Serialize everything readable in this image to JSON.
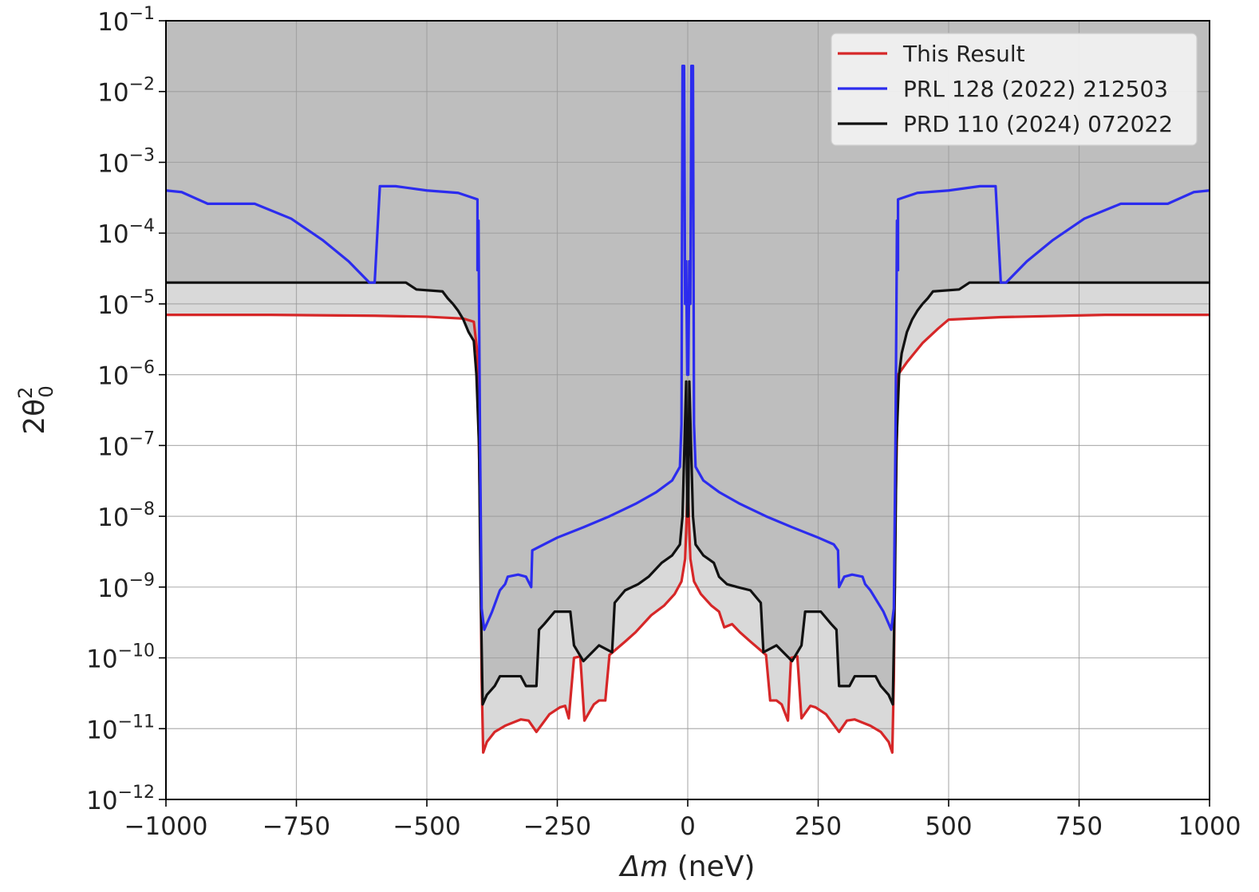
{
  "chart_data": {
    "type": "line",
    "title": "",
    "xlabel_symbol": "Δm",
    "xlabel_unit": " (neV)",
    "ylabel_base": "2θ",
    "ylabel_sup": "2",
    "ylabel_sub": "0",
    "xlim": [
      -1000,
      1000
    ],
    "ylim_exponents": [
      -12,
      -1
    ],
    "yscale": "log",
    "grid": true,
    "legend_position": "top-right",
    "x_ticks": [
      {
        "value": -1000,
        "label": "−1000"
      },
      {
        "value": -750,
        "label": "−750"
      },
      {
        "value": -500,
        "label": "−500"
      },
      {
        "value": -250,
        "label": "−250"
      },
      {
        "value": 0,
        "label": "0"
      },
      {
        "value": 250,
        "label": "250"
      },
      {
        "value": 500,
        "label": "500"
      },
      {
        "value": 750,
        "label": "750"
      },
      {
        "value": 1000,
        "label": "1000"
      }
    ],
    "y_ticks": [
      {
        "exp": -12,
        "base": "10",
        "sup": "−12"
      },
      {
        "exp": -11,
        "base": "10",
        "sup": "−11"
      },
      {
        "exp": -10,
        "base": "10",
        "sup": "−10"
      },
      {
        "exp": -9,
        "base": "10",
        "sup": "−9"
      },
      {
        "exp": -8,
        "base": "10",
        "sup": "−8"
      },
      {
        "exp": -7,
        "base": "10",
        "sup": "−7"
      },
      {
        "exp": -6,
        "base": "10",
        "sup": "−6"
      },
      {
        "exp": -5,
        "base": "10",
        "sup": "−5"
      },
      {
        "exp": -4,
        "base": "10",
        "sup": "−4"
      },
      {
        "exp": -3,
        "base": "10",
        "sup": "−3"
      },
      {
        "exp": -2,
        "base": "10",
        "sup": "−2"
      },
      {
        "exp": -1,
        "base": "10",
        "sup": "−1"
      }
    ],
    "series": [
      {
        "name": "This Result",
        "color": "#d62728",
        "exclusion_fill": "#d9d9d9",
        "points": [
          [
            -1000,
            7e-06
          ],
          [
            -800,
            7e-06
          ],
          [
            -600,
            6.8e-06
          ],
          [
            -500,
            6.6e-06
          ],
          [
            -430,
            6.2e-06
          ],
          [
            -410,
            5.6e-06
          ],
          [
            -403,
            2e-06
          ],
          [
            -398,
            1e-08
          ],
          [
            -395,
            5e-11
          ],
          [
            -392,
            4.6e-12
          ],
          [
            -385,
            6.5e-12
          ],
          [
            -370,
            9e-12
          ],
          [
            -350,
            1.1e-11
          ],
          [
            -320,
            1.35e-11
          ],
          [
            -305,
            1.3e-11
          ],
          [
            -290,
            9e-12
          ],
          [
            -265,
            1.6e-11
          ],
          [
            -245,
            2e-11
          ],
          [
            -235,
            2.1e-11
          ],
          [
            -228,
            1.4e-11
          ],
          [
            -218,
            1e-10
          ],
          [
            -206,
            1.05e-10
          ],
          [
            -198,
            1.3e-11
          ],
          [
            -180,
            2.2e-11
          ],
          [
            -170,
            2.5e-11
          ],
          [
            -158,
            2.5e-11
          ],
          [
            -150,
            1.1e-10
          ],
          [
            -120,
            1.7e-10
          ],
          [
            -100,
            2.3e-10
          ],
          [
            -70,
            4e-10
          ],
          [
            -45,
            5.5e-10
          ],
          [
            -25,
            8e-10
          ],
          [
            -12,
            1.2e-09
          ],
          [
            -5,
            2.5e-09
          ],
          [
            -2,
            1e-08
          ],
          [
            -0.5,
            3e-08
          ],
          [
            0.5,
            3e-08
          ],
          [
            2,
            1e-08
          ],
          [
            5,
            2.5e-09
          ],
          [
            12,
            1.2e-09
          ],
          [
            25,
            8e-10
          ],
          [
            45,
            5.5e-10
          ],
          [
            60,
            4.5e-10
          ],
          [
            70,
            2.7e-10
          ],
          [
            85,
            3e-10
          ],
          [
            100,
            2.3e-10
          ],
          [
            120,
            1.7e-10
          ],
          [
            150,
            1.1e-10
          ],
          [
            158,
            2.5e-11
          ],
          [
            170,
            2.5e-11
          ],
          [
            180,
            2.2e-11
          ],
          [
            192,
            1.3e-11
          ],
          [
            198,
            1e-10
          ],
          [
            210,
            1.05e-10
          ],
          [
            218,
            1.4e-11
          ],
          [
            235,
            2.1e-11
          ],
          [
            245,
            2e-11
          ],
          [
            265,
            1.6e-11
          ],
          [
            290,
            9e-12
          ],
          [
            305,
            1.3e-11
          ],
          [
            320,
            1.35e-11
          ],
          [
            350,
            1.1e-11
          ],
          [
            370,
            9e-12
          ],
          [
            385,
            6.5e-12
          ],
          [
            392,
            4.6e-12
          ],
          [
            395,
            5e-11
          ],
          [
            398,
            1e-08
          ],
          [
            403,
            1e-06
          ],
          [
            420,
            1.5e-06
          ],
          [
            450,
            2.8e-06
          ],
          [
            480,
            4.5e-06
          ],
          [
            500,
            6e-06
          ],
          [
            600,
            6.5e-06
          ],
          [
            800,
            7e-06
          ],
          [
            1000,
            7e-06
          ]
        ]
      },
      {
        "name": "PRL 128 (2022) 212503",
        "color": "#2c2cee",
        "exclusion_fill": "#bebebe",
        "points": [
          [
            -1000,
            0.0004
          ],
          [
            -970,
            0.00038
          ],
          [
            -920,
            0.00026
          ],
          [
            -830,
            0.00026
          ],
          [
            -760,
            0.00016
          ],
          [
            -700,
            8e-05
          ],
          [
            -650,
            4e-05
          ],
          [
            -610,
            2e-05
          ],
          [
            -600,
            2e-05
          ],
          [
            -590,
            0.00046
          ],
          [
            -560,
            0.00046
          ],
          [
            -500,
            0.0004
          ],
          [
            -440,
            0.00037
          ],
          [
            -403,
            0.0003
          ],
          [
            -403,
            3e-05
          ],
          [
            -402,
            0.00015
          ],
          [
            -401,
            0.00015
          ],
          [
            -400,
            1e-05
          ],
          [
            -398,
            1e-07
          ],
          [
            -395,
            5e-10
          ],
          [
            -390,
            2.5e-10
          ],
          [
            -375,
            4.5e-10
          ],
          [
            -360,
            9e-10
          ],
          [
            -350,
            1.1e-09
          ],
          [
            -345,
            1.4e-09
          ],
          [
            -325,
            1.5e-09
          ],
          [
            -310,
            1.4e-09
          ],
          [
            -300,
            1e-09
          ],
          [
            -298,
            3.3e-09
          ],
          [
            -250,
            5e-09
          ],
          [
            -200,
            7e-09
          ],
          [
            -150,
            1e-08
          ],
          [
            -100,
            1.5e-08
          ],
          [
            -60,
            2.2e-08
          ],
          [
            -30,
            3.2e-08
          ],
          [
            -15,
            5e-08
          ],
          [
            -12,
            2e-07
          ],
          [
            -10,
            0.023
          ],
          [
            -7,
            0.023
          ],
          [
            -5,
            1e-05
          ],
          [
            -3,
            4e-05
          ],
          [
            -1,
            1e-06
          ],
          [
            1,
            1e-06
          ],
          [
            3,
            4e-05
          ],
          [
            5,
            1e-05
          ],
          [
            7,
            0.023
          ],
          [
            10,
            0.023
          ],
          [
            12,
            2e-07
          ],
          [
            15,
            5e-08
          ],
          [
            30,
            3.2e-08
          ],
          [
            60,
            2.2e-08
          ],
          [
            100,
            1.5e-08
          ],
          [
            150,
            1e-08
          ],
          [
            200,
            7e-09
          ],
          [
            250,
            5e-09
          ],
          [
            280,
            4e-09
          ],
          [
            288,
            3.3e-09
          ],
          [
            290,
            1e-09
          ],
          [
            300,
            1.4e-09
          ],
          [
            315,
            1.5e-09
          ],
          [
            335,
            1.4e-09
          ],
          [
            340,
            1.1e-09
          ],
          [
            350,
            9e-10
          ],
          [
            375,
            4.5e-10
          ],
          [
            390,
            2.5e-10
          ],
          [
            395,
            5e-10
          ],
          [
            398,
            1e-07
          ],
          [
            400,
            1e-05
          ],
          [
            401,
            0.00015
          ],
          [
            402,
            0.00015
          ],
          [
            403,
            3e-05
          ],
          [
            403,
            0.0003
          ],
          [
            440,
            0.00037
          ],
          [
            500,
            0.0004
          ],
          [
            560,
            0.00046
          ],
          [
            590,
            0.00046
          ],
          [
            600,
            2e-05
          ],
          [
            610,
            2e-05
          ],
          [
            650,
            4e-05
          ],
          [
            700,
            8e-05
          ],
          [
            760,
            0.00016
          ],
          [
            830,
            0.00026
          ],
          [
            920,
            0.00026
          ],
          [
            970,
            0.00038
          ],
          [
            1000,
            0.0004
          ]
        ]
      },
      {
        "name": "PRD 110 (2024) 072022",
        "color": "#111111",
        "exclusion_fill": "#bebebe",
        "points": [
          [
            -1000,
            2e-05
          ],
          [
            -600,
            2e-05
          ],
          [
            -540,
            2e-05
          ],
          [
            -520,
            1.6e-05
          ],
          [
            -470,
            1.5e-05
          ],
          [
            -460,
            1.2e-05
          ],
          [
            -450,
            1e-05
          ],
          [
            -440,
            8e-06
          ],
          [
            -430,
            6e-06
          ],
          [
            -420,
            4e-06
          ],
          [
            -410,
            3e-06
          ],
          [
            -405,
            1e-06
          ],
          [
            -400,
            1e-07
          ],
          [
            -397,
            1e-09
          ],
          [
            -393,
            2.2e-11
          ],
          [
            -385,
            3e-11
          ],
          [
            -370,
            4e-11
          ],
          [
            -360,
            5.5e-11
          ],
          [
            -320,
            5.5e-11
          ],
          [
            -310,
            4e-11
          ],
          [
            -290,
            4e-11
          ],
          [
            -285,
            2.5e-10
          ],
          [
            -275,
            3e-10
          ],
          [
            -255,
            4.5e-10
          ],
          [
            -225,
            4.5e-10
          ],
          [
            -218,
            1.5e-10
          ],
          [
            -200,
            9e-11
          ],
          [
            -170,
            1.5e-10
          ],
          [
            -145,
            1.2e-10
          ],
          [
            -140,
            6e-10
          ],
          [
            -120,
            9e-10
          ],
          [
            -95,
            1.1e-09
          ],
          [
            -75,
            1.4e-09
          ],
          [
            -50,
            2.2e-09
          ],
          [
            -30,
            2.8e-09
          ],
          [
            -15,
            4e-09
          ],
          [
            -10,
            1e-08
          ],
          [
            -3,
            8e-07
          ],
          [
            -1,
            1e-08
          ],
          [
            1,
            1e-08
          ],
          [
            3,
            8e-07
          ],
          [
            10,
            1e-08
          ],
          [
            15,
            4e-09
          ],
          [
            30,
            2.8e-09
          ],
          [
            50,
            2.2e-09
          ],
          [
            60,
            1.4e-09
          ],
          [
            75,
            1.1e-09
          ],
          [
            95,
            1e-09
          ],
          [
            120,
            9e-10
          ],
          [
            140,
            6e-10
          ],
          [
            145,
            1.2e-10
          ],
          [
            170,
            1.5e-10
          ],
          [
            200,
            9e-11
          ],
          [
            218,
            1.5e-10
          ],
          [
            225,
            4.5e-10
          ],
          [
            255,
            4.5e-10
          ],
          [
            275,
            3e-10
          ],
          [
            285,
            2.5e-10
          ],
          [
            290,
            4e-11
          ],
          [
            310,
            4e-11
          ],
          [
            320,
            5.5e-11
          ],
          [
            360,
            5.5e-11
          ],
          [
            370,
            4e-11
          ],
          [
            385,
            3e-11
          ],
          [
            393,
            2.2e-11
          ],
          [
            397,
            1e-09
          ],
          [
            400,
            1e-07
          ],
          [
            405,
            1e-06
          ],
          [
            410,
            2e-06
          ],
          [
            420,
            4e-06
          ],
          [
            430,
            6e-06
          ],
          [
            440,
            8e-06
          ],
          [
            450,
            1e-05
          ],
          [
            460,
            1.2e-05
          ],
          [
            470,
            1.5e-05
          ],
          [
            520,
            1.6e-05
          ],
          [
            540,
            2e-05
          ],
          [
            600,
            2e-05
          ],
          [
            1000,
            2e-05
          ]
        ]
      }
    ]
  }
}
